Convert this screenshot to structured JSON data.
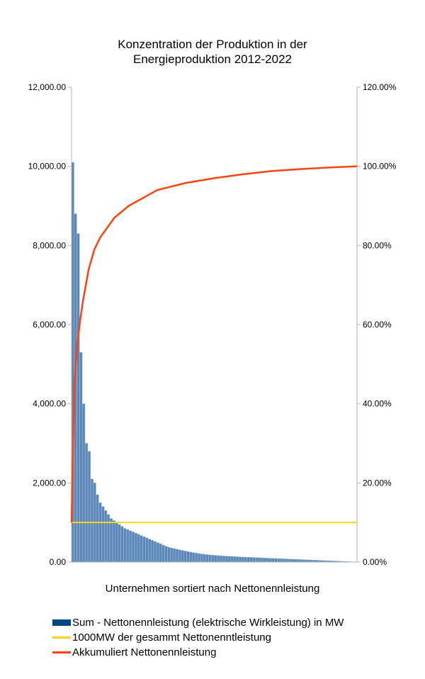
{
  "chart_data": {
    "type": "bar+line",
    "title_lines": [
      "Konzentration der Produktion in der",
      "Energieproduktion 2012-2022"
    ],
    "xlabel": "Unternehmen sortiert nach Nettonennleistung",
    "ylim": [
      0,
      12000
    ],
    "y2lim": [
      0,
      1.2
    ],
    "y_ticks": [
      "0.00",
      "2,000.00",
      "4,000.00",
      "6,000.00",
      "8,000.00",
      "10,000.00",
      "12,000.00"
    ],
    "y2_ticks": [
      "0.00%",
      "20.00%",
      "40.00%",
      "60.00%",
      "80.00%",
      "100.00%",
      "120.00%"
    ],
    "grid": false,
    "legend_position": "bottom",
    "series": [
      {
        "name": "Sum - Nettonennleistung (elektrische Wirkleistung) in MW",
        "type": "bar",
        "axis": "left",
        "color": "#004586",
        "values": [
          10100,
          8800,
          8300,
          5300,
          4000,
          3000,
          2800,
          2100,
          2000,
          1700,
          1500,
          1400,
          1300,
          1200,
          1100,
          1050,
          1000,
          950,
          900,
          850,
          820,
          790,
          760,
          730,
          700,
          670,
          640,
          610,
          580,
          550,
          520,
          490,
          460,
          430,
          400,
          375,
          355,
          340,
          325,
          310,
          295,
          280,
          265,
          250,
          238,
          226,
          215,
          205,
          196,
          188,
          181,
          175,
          169,
          164,
          159,
          154,
          150,
          146,
          142,
          138,
          134,
          130,
          127,
          124,
          121,
          118,
          115,
          112,
          109,
          106,
          103,
          100,
          97,
          94,
          91,
          88,
          85,
          82,
          79,
          76,
          73,
          70,
          67,
          64,
          61,
          58,
          55,
          52,
          49,
          46,
          43,
          40,
          37,
          34,
          31,
          28,
          25,
          22,
          19,
          16,
          13,
          10,
          7,
          5
        ]
      },
      {
        "name": "1000MW der gesammt Nettonenntleistung",
        "type": "line",
        "axis": "left",
        "color": "#ffd320",
        "values": [
          1000,
          1000
        ]
      },
      {
        "name": "Akkumuliert Nettonennleistung",
        "type": "line",
        "axis": "right",
        "color": "#ff420e",
        "x": [
          0,
          0.005,
          0.01,
          0.02,
          0.03,
          0.04,
          0.06,
          0.08,
          0.1,
          0.15,
          0.2,
          0.3,
          0.4,
          0.5,
          0.6,
          0.7,
          0.8,
          0.9,
          1.0
        ],
        "values": [
          0.1,
          0.3,
          0.45,
          0.55,
          0.61,
          0.66,
          0.74,
          0.79,
          0.82,
          0.87,
          0.9,
          0.94,
          0.958,
          0.97,
          0.98,
          0.988,
          0.993,
          0.997,
          1.0
        ]
      }
    ]
  }
}
